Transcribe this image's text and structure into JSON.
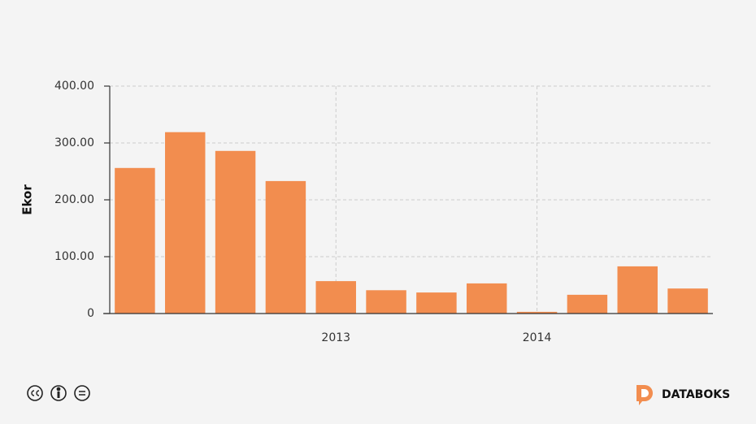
{
  "chart_data": {
    "type": "bar",
    "y_label": "Ekor",
    "categories": [
      null,
      null,
      null,
      null,
      "2013",
      null,
      null,
      null,
      "2014",
      null,
      null,
      null
    ],
    "values": [
      256,
      319,
      286,
      233,
      57,
      41,
      37,
      53,
      3,
      33,
      83,
      44
    ],
    "color": "#f28d4f",
    "ylim": [
      0,
      400
    ],
    "yticks": [
      0,
      {
        "value": 100,
        "label": "100.00"
      },
      {
        "value": 200,
        "label": "200.00"
      },
      {
        "value": 300,
        "label": "300.00"
      },
      {
        "value": 400,
        "label": "400.00"
      }
    ],
    "grid": true
  },
  "branding": {
    "name": "DATABOKS"
  }
}
